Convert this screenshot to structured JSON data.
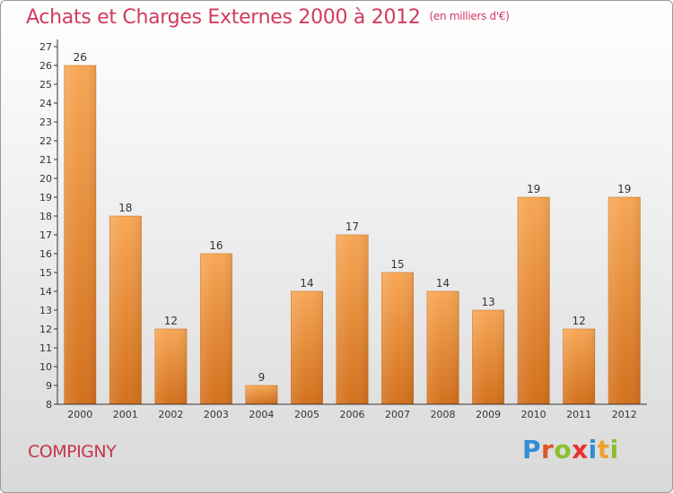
{
  "title": "Achats et Charges Externes 2000 à 2012",
  "unit": "(en milliers d'€)",
  "commune": "COMPIGNY",
  "logo": {
    "text": "Proxiti",
    "letter_colors": [
      "#2e8fd8",
      "#e0552b",
      "#8bbf2e",
      "#e8312f",
      "#2e8fd8",
      "#f0a030",
      "#8bbf2e"
    ]
  },
  "colors": {
    "bar_top": "#f7a755",
    "bar_bottom": "#d3701c",
    "axis": "#333333",
    "text": "#333333"
  },
  "chart_data": {
    "type": "bar",
    "title": "Achats et Charges Externes 2000 à 2012",
    "subtitle": "(en milliers d'€)",
    "categories": [
      "2000",
      "2001",
      "2002",
      "2003",
      "2004",
      "2005",
      "2006",
      "2007",
      "2008",
      "2009",
      "2010",
      "2011",
      "2012"
    ],
    "values": [
      26,
      18,
      12,
      16,
      9,
      14,
      17,
      15,
      14,
      13,
      19,
      12,
      19
    ],
    "ylim": [
      8,
      27
    ],
    "yticks": [
      8,
      9,
      10,
      11,
      12,
      13,
      14,
      15,
      16,
      17,
      18,
      19,
      20,
      21,
      22,
      23,
      24,
      25,
      26,
      27
    ],
    "data_labels": true,
    "grid": false,
    "xlabel": "",
    "ylabel": ""
  }
}
